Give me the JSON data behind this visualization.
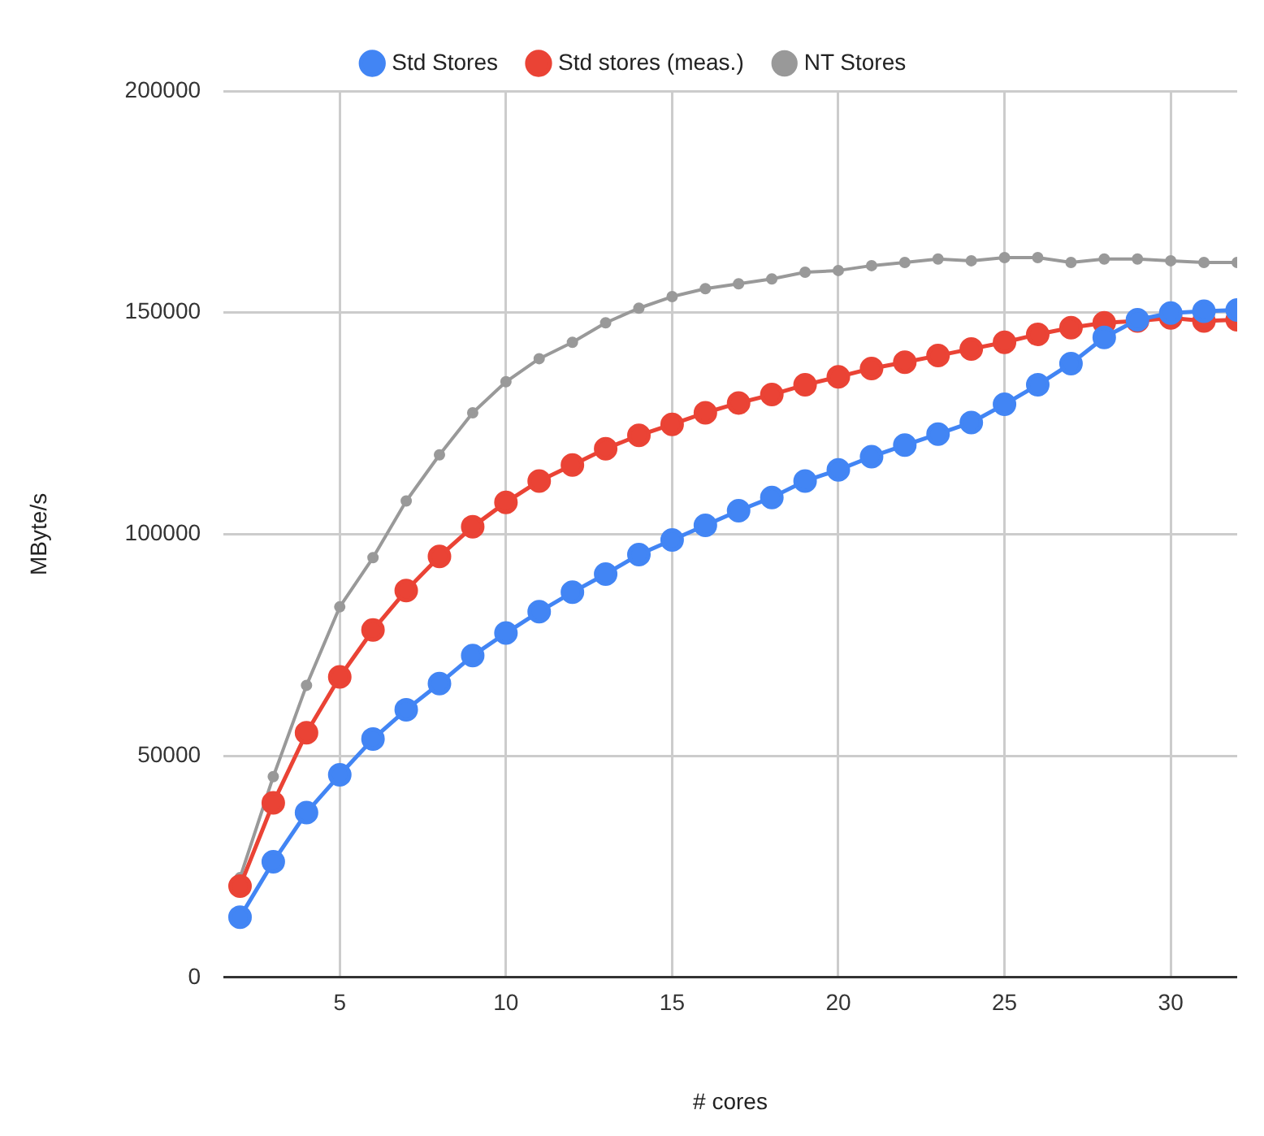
{
  "chart_data": {
    "type": "line",
    "xlabel": "# cores",
    "ylabel": "MByte/s",
    "x": [
      2,
      3,
      4,
      5,
      6,
      7,
      8,
      9,
      10,
      11,
      12,
      13,
      14,
      15,
      16,
      17,
      18,
      19,
      20,
      21,
      22,
      23,
      24,
      25,
      26,
      27,
      28,
      29,
      30,
      31,
      32
    ],
    "series": [
      {
        "name": "Std Stores",
        "color": "#4285f4",
        "values": [
          13600,
          26100,
          37200,
          45700,
          53800,
          60400,
          66300,
          72600,
          77700,
          82500,
          86900,
          91000,
          95400,
          98700,
          102000,
          105300,
          108300,
          112000,
          114500,
          117500,
          120100,
          122600,
          125200,
          129300,
          133700,
          138500,
          144400,
          148400,
          149900,
          150300,
          150600
        ]
      },
      {
        "name": "Std stores (meas.)",
        "color": "#ea4335",
        "values": [
          20600,
          39400,
          55200,
          67800,
          78400,
          87300,
          95000,
          101700,
          107200,
          112000,
          115600,
          119300,
          122300,
          124800,
          127400,
          129600,
          131500,
          133700,
          135500,
          137400,
          138800,
          140300,
          141800,
          143300,
          145100,
          146600,
          147700,
          148100,
          148800,
          148100,
          148400
        ]
      },
      {
        "name": "NT Stores",
        "color": "#999999",
        "values": [
          22500,
          45300,
          65900,
          83600,
          94700,
          107500,
          117900,
          127400,
          134400,
          139600,
          143300,
          147700,
          151000,
          153600,
          155400,
          156500,
          157600,
          159100,
          159500,
          160600,
          161300,
          162100,
          161700,
          162400,
          162400,
          161300,
          162100,
          162100,
          161700,
          161300,
          161300
        ]
      }
    ],
    "xlim": [
      1.5,
      32
    ],
    "xticks": [
      5,
      10,
      15,
      20,
      25,
      30
    ],
    "ylim": [
      0,
      200000
    ],
    "yticks": [
      0,
      50000,
      100000,
      150000,
      200000
    ],
    "grid": true,
    "legend": "top",
    "marker": "circle",
    "line_style": "solid"
  }
}
